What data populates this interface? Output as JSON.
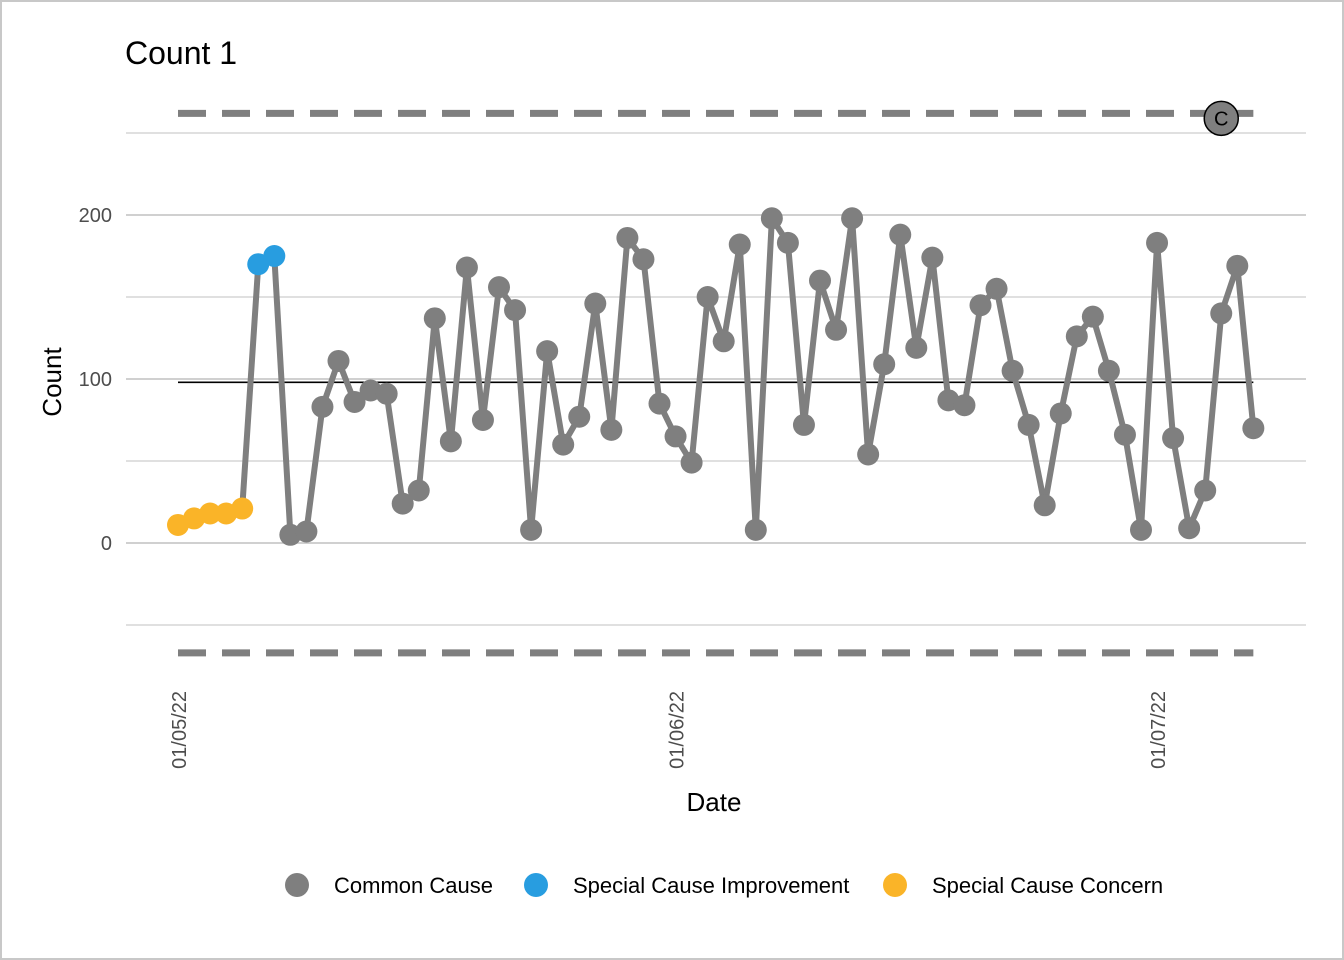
{
  "chart_data": {
    "type": "line",
    "title": "Count 1",
    "xlabel": "Date",
    "ylabel": "Count",
    "ylim": [
      -50,
      250
    ],
    "y_ticks": [
      0,
      100,
      200
    ],
    "x_ticks": [
      "01/05/22",
      "01/06/22",
      "01/07/22"
    ],
    "mean": 98,
    "upper_limit": 262,
    "lower_limit": -67,
    "annotation": "C",
    "series": [
      {
        "values": [
          11,
          15,
          18,
          18,
          21,
          170,
          175,
          5,
          7,
          83,
          111,
          86,
          93,
          91,
          24,
          32,
          137,
          62,
          168,
          75,
          156,
          142,
          8,
          117,
          60,
          77,
          146,
          69,
          186,
          173,
          85,
          65,
          49,
          150,
          123,
          182,
          8,
          198,
          183,
          72,
          160,
          130,
          198,
          54,
          109,
          188,
          119,
          174,
          87,
          84,
          145,
          155,
          105,
          72,
          23,
          79,
          126,
          138,
          105,
          66,
          8,
          183,
          64,
          9,
          32,
          140,
          169,
          70
        ]
      }
    ],
    "point_categories": [
      "Special Cause Concern",
      "Special Cause Concern",
      "Special Cause Concern",
      "Special Cause Concern",
      "Special Cause Concern",
      "Special Cause Improvement",
      "Special Cause Improvement",
      "Common Cause",
      "Common Cause",
      "Common Cause",
      "Common Cause",
      "Common Cause",
      "Common Cause",
      "Common Cause",
      "Common Cause",
      "Common Cause",
      "Common Cause",
      "Common Cause",
      "Common Cause",
      "Common Cause",
      "Common Cause",
      "Common Cause",
      "Common Cause",
      "Common Cause",
      "Common Cause",
      "Common Cause",
      "Common Cause",
      "Common Cause",
      "Common Cause",
      "Common Cause",
      "Common Cause",
      "Common Cause",
      "Common Cause",
      "Common Cause",
      "Common Cause",
      "Common Cause",
      "Common Cause",
      "Common Cause",
      "Common Cause",
      "Common Cause",
      "Common Cause",
      "Common Cause",
      "Common Cause",
      "Common Cause",
      "Common Cause",
      "Common Cause",
      "Common Cause",
      "Common Cause",
      "Common Cause",
      "Common Cause",
      "Common Cause",
      "Common Cause",
      "Common Cause",
      "Common Cause",
      "Common Cause",
      "Common Cause",
      "Common Cause",
      "Common Cause",
      "Common Cause",
      "Common Cause",
      "Common Cause",
      "Common Cause",
      "Common Cause",
      "Common Cause",
      "Common Cause",
      "Common Cause",
      "Common Cause",
      "Common Cause"
    ],
    "legend": [
      {
        "label": "Common Cause",
        "color": "#7f7f7f"
      },
      {
        "label": "Special Cause Improvement",
        "color": "#289de0"
      },
      {
        "label": "Special Cause Concern",
        "color": "#fab428"
      }
    ],
    "colors": {
      "line": "#7f7f7f",
      "mean": "#000000",
      "limits": "#7f7f7f",
      "grid": "#c0c0c0"
    },
    "grid": true,
    "legend_position": "bottom"
  }
}
